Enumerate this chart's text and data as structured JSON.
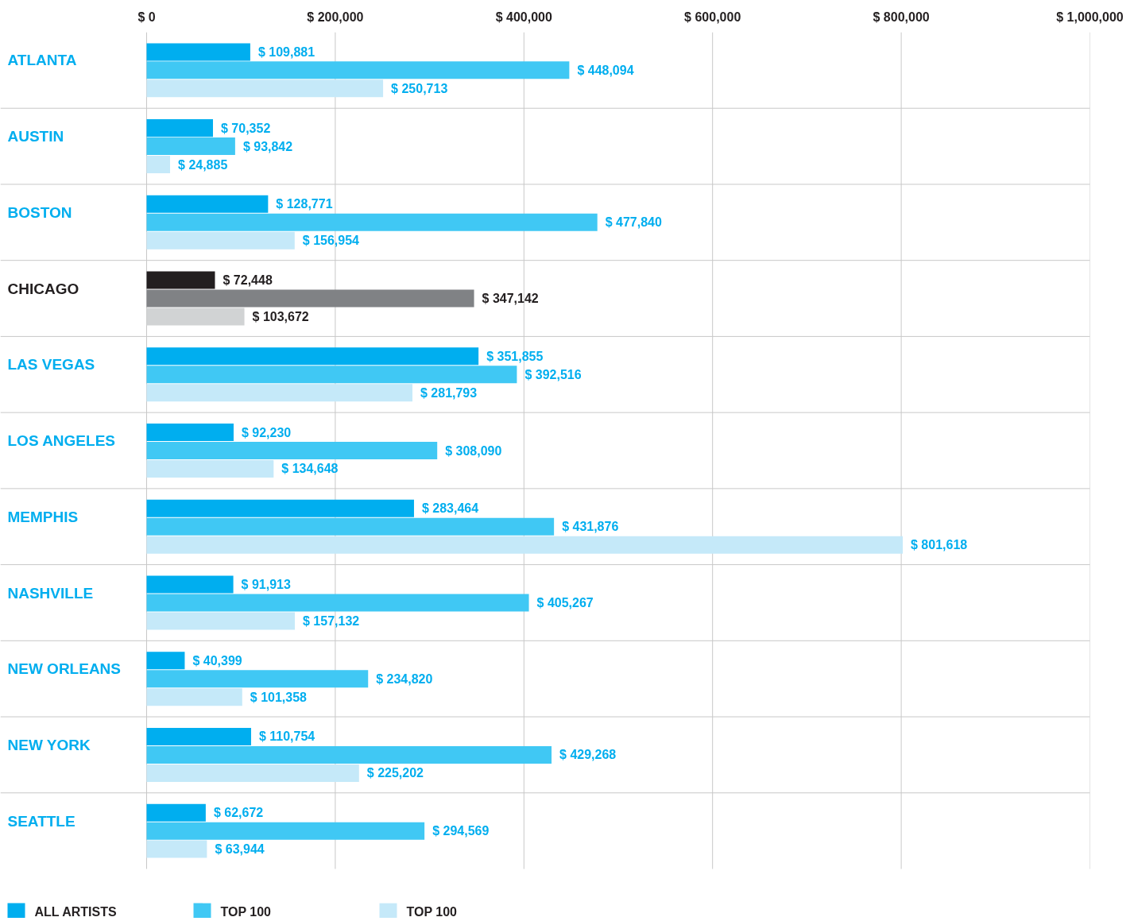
{
  "chart_data": {
    "type": "bar",
    "orientation": "horizontal",
    "categories": [
      "ATLANTA",
      "AUSTIN",
      "BOSTON",
      "CHICAGO",
      "LAS VEGAS",
      "LOS ANGELES",
      "MEMPHIS",
      "NASHVILLE",
      "NEW ORLEANS",
      "NEW YORK",
      "SEATTLE"
    ],
    "series": [
      {
        "name": "ALL ARTISTS",
        "color": "#00aeef",
        "colors": [
          "#00aeef",
          "#00aeef",
          "#00aeef",
          "#231f20",
          "#00aeef",
          "#00aeef",
          "#00aeef",
          "#00aeef",
          "#00aeef",
          "#00aeef",
          "#00aeef"
        ],
        "values": [
          109881,
          70352,
          128771,
          72448,
          351855,
          92230,
          283464,
          91913,
          40399,
          110754,
          62672
        ],
        "value_labels": [
          "$ 109,881",
          "$ 70,352",
          "$ 128,771",
          "$ 72,448",
          "$ 351,855",
          "$ 92,230",
          "$ 283,464",
          "$ 91,913",
          "$ 40,399",
          "$ 110,754",
          "$ 62,672"
        ]
      },
      {
        "name": "TOP 100",
        "color": "#40c8f4",
        "colors": [
          "#40c8f4",
          "#40c8f4",
          "#40c8f4",
          "#808285",
          "#40c8f4",
          "#40c8f4",
          "#40c8f4",
          "#40c8f4",
          "#40c8f4",
          "#40c8f4",
          "#40c8f4"
        ],
        "values": [
          448094,
          93842,
          477840,
          347142,
          392516,
          308090,
          431876,
          405267,
          234820,
          429268,
          294569
        ],
        "value_labels": [
          "$ 448,094",
          "$ 93,842",
          "$ 477,840",
          "$ 347,142",
          "$ 392,516",
          "$ 308,090",
          "$ 431,876",
          "$ 405,267",
          "$ 234,820",
          "$ 429,268",
          "$ 294,569"
        ]
      },
      {
        "name": "TOP 100",
        "color": "#c5e9f9",
        "colors": [
          "#c5e9f9",
          "#c5e9f9",
          "#c5e9f9",
          "#d1d3d4",
          "#c5e9f9",
          "#c5e9f9",
          "#c5e9f9",
          "#c5e9f9",
          "#c5e9f9",
          "#c5e9f9",
          "#c5e9f9"
        ],
        "values": [
          250713,
          24885,
          156954,
          103672,
          281793,
          134648,
          801618,
          157132,
          101358,
          225202,
          63944
        ],
        "value_labels": [
          "$ 250,713",
          "$ 24,885",
          "$ 156,954",
          "$ 103,672",
          "$ 281,793",
          "$ 134,648",
          "$ 801,618",
          "$ 157,132",
          "$ 101,358",
          "$ 225,202",
          "$ 63,944"
        ]
      }
    ],
    "xlim": [
      0,
      1000000
    ],
    "xticks": [
      {
        "value": 0,
        "label": "$ 0"
      },
      {
        "value": 200000,
        "label": "$ 200,000"
      },
      {
        "value": 400000,
        "label": "$ 400,000"
      },
      {
        "value": 600000,
        "label": "$ 600,000"
      },
      {
        "value": 800000,
        "label": "$ 800,000"
      },
      {
        "value": 1000000,
        "label": "$ 1,000,000"
      }
    ],
    "grid": "x",
    "legend": "bottom left"
  }
}
